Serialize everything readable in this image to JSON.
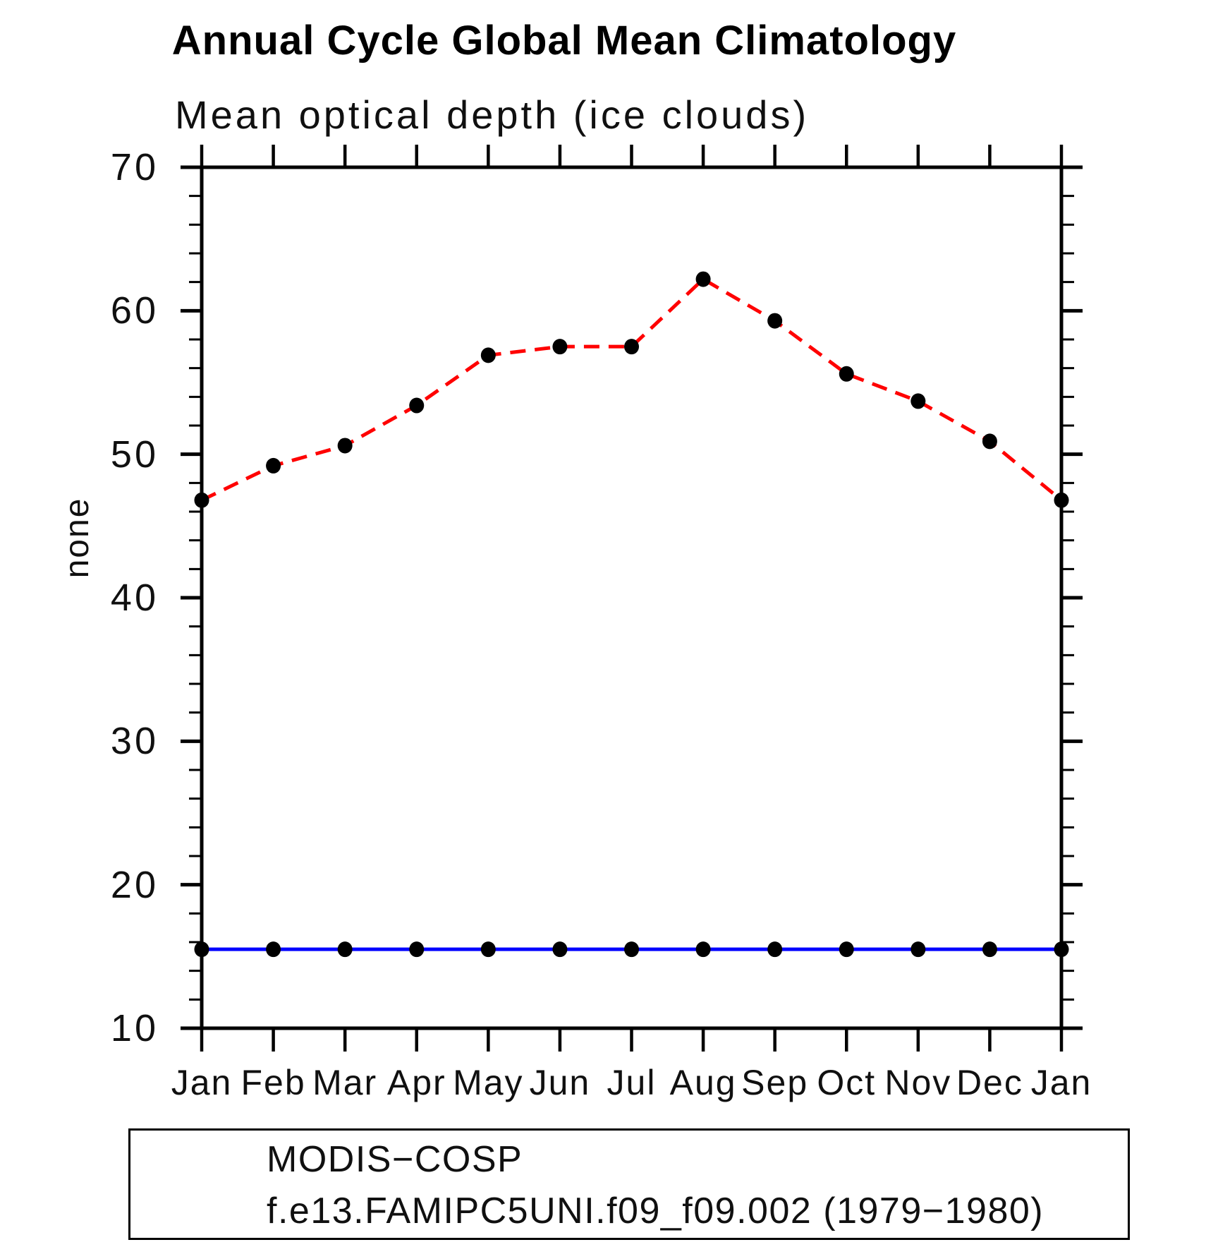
{
  "figure": {
    "title": "Annual Cycle Global Mean Climatology",
    "subtitle": "Mean optical depth (ice clouds)",
    "y_axis_title": "none"
  },
  "chart_data": {
    "type": "line",
    "title": "Annual Cycle Global Mean Climatology",
    "subtitle": "Mean optical depth (ice clouds)",
    "xlabel": "",
    "ylabel": "none",
    "categories": [
      "Jan",
      "Feb",
      "Mar",
      "Apr",
      "May",
      "Jun",
      "Jul",
      "Aug",
      "Sep",
      "Oct",
      "Nov",
      "Dec",
      "Jan"
    ],
    "ylim": [
      10,
      70
    ],
    "y_major_ticks": [
      70,
      60,
      50,
      40,
      30,
      20,
      10
    ],
    "y_minor_step": 2,
    "grid": false,
    "legend_position": "bottom-left-box",
    "series": [
      {
        "name": "MODIS−COSP",
        "color": "#0000ff",
        "line_style": "solid",
        "marker": "filled-black-dot",
        "values": [
          15.5,
          15.5,
          15.5,
          15.5,
          15.5,
          15.5,
          15.5,
          15.5,
          15.5,
          15.5,
          15.5,
          15.5,
          15.5
        ]
      },
      {
        "name": "f.e13.FAMIPC5UNI.f09_f09.002 (1979−1980)",
        "color": "#ff0000",
        "line_style": "dashed",
        "marker": "filled-black-dot",
        "values": [
          46.8,
          49.2,
          50.6,
          53.4,
          56.9,
          57.5,
          57.5,
          62.2,
          59.3,
          55.6,
          53.7,
          50.9,
          46.8
        ]
      }
    ]
  },
  "style": {
    "background": "#ffffff",
    "axis_color": "#000000",
    "marker_color": "#000000",
    "text_color": "#101010"
  }
}
